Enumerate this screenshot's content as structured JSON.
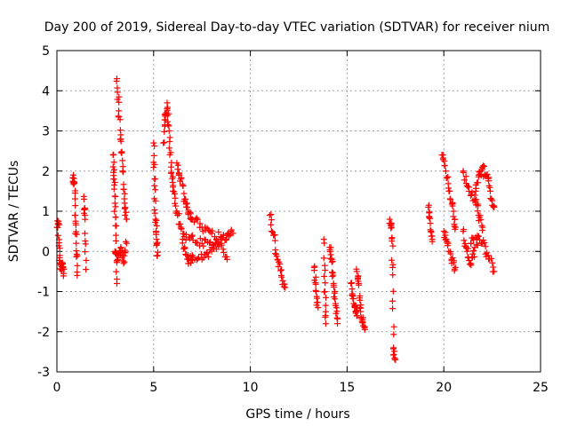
{
  "chart_data": {
    "type": "scatter",
    "title": "Day 200 of 2019, Sidereal Day-to-day VTEC variation (SDTVAR) for receiver nium",
    "xlabel": "GPS time / hours",
    "ylabel": "SDTVAR / TECUs",
    "xlim": [
      0,
      25
    ],
    "ylim": [
      -3,
      5
    ],
    "xticks": [
      0,
      5,
      10,
      15,
      20,
      25
    ],
    "yticks": [
      -3,
      -2,
      -1,
      0,
      1,
      2,
      3,
      4,
      5
    ],
    "grid": true,
    "marker": "+",
    "series_color": "#ff0000",
    "series": [
      {
        "name": "SDTVAR",
        "segments": [
          {
            "x0": 0.0,
            "x1": 0.35,
            "points": [
              [
                0.0,
                0.6
              ],
              [
                0.08,
                0.7
              ],
              [
                0.15,
                -0.1
              ],
              [
                0.22,
                -0.45
              ],
              [
                0.3,
                -0.3
              ],
              [
                0.35,
                -0.55
              ]
            ]
          },
          {
            "x0": 0.85,
            "x1": 1.05,
            "points": [
              [
                0.85,
                1.9
              ],
              [
                0.9,
                1.7
              ],
              [
                0.95,
                0.9
              ],
              [
                1.0,
                0.2
              ],
              [
                1.05,
                -0.6
              ]
            ]
          },
          {
            "x0": 1.4,
            "x1": 1.5,
            "points": [
              [
                1.4,
                1.3
              ],
              [
                1.45,
                0.9
              ],
              [
                1.5,
                -0.45
              ]
            ]
          },
          {
            "x0": 2.9,
            "x1": 3.1,
            "points": [
              [
                2.9,
                2.4
              ],
              [
                2.95,
                1.8
              ],
              [
                3.0,
                1.2
              ],
              [
                3.05,
                0.4
              ],
              [
                3.1,
                -0.8
              ]
            ]
          },
          {
            "x0": 3.1,
            "x1": 3.6,
            "points": [
              [
                3.1,
                4.3
              ],
              [
                3.2,
                3.5
              ],
              [
                3.3,
                2.8
              ],
              [
                3.4,
                2.0
              ],
              [
                3.5,
                1.2
              ],
              [
                3.6,
                0.8
              ]
            ]
          },
          {
            "x0": 3.0,
            "x1": 3.6,
            "points": [
              [
                3.0,
                0.0
              ],
              [
                3.15,
                -0.2
              ],
              [
                3.3,
                0.1
              ],
              [
                3.45,
                -0.3
              ],
              [
                3.6,
                0.2
              ]
            ]
          },
          {
            "x0": 5.0,
            "x1": 5.2,
            "points": [
              [
                5.0,
                2.7
              ],
              [
                5.05,
                1.8
              ],
              [
                5.1,
                0.8
              ],
              [
                5.15,
                0.3
              ],
              [
                5.2,
                -0.1
              ]
            ]
          },
          {
            "x0": 5.5,
            "x1": 6.0,
            "points": [
              [
                5.5,
                2.7
              ],
              [
                5.6,
                3.4
              ],
              [
                5.7,
                3.7
              ],
              [
                5.8,
                3.0
              ],
              [
                5.9,
                2.1
              ],
              [
                6.0,
                1.6
              ]
            ]
          },
          {
            "x0": 6.0,
            "x1": 7.0,
            "points": [
              [
                6.0,
                1.5
              ],
              [
                6.2,
                1.0
              ],
              [
                6.4,
                0.6
              ],
              [
                6.6,
                0.1
              ],
              [
                6.8,
                -0.3
              ],
              [
                7.0,
                -0.1
              ]
            ]
          },
          {
            "x0": 6.2,
            "x1": 7.0,
            "points": [
              [
                6.2,
                2.2
              ],
              [
                6.4,
                1.8
              ],
              [
                6.6,
                1.3
              ],
              [
                6.8,
                1.0
              ],
              [
                7.0,
                0.8
              ]
            ]
          },
          {
            "x0": 7.0,
            "x1": 9.1,
            "points": [
              [
                7.0,
                0.8
              ],
              [
                7.5,
                0.6
              ],
              [
                8.0,
                0.45
              ],
              [
                8.5,
                0.35
              ],
              [
                9.1,
                0.45
              ]
            ]
          },
          {
            "x0": 7.0,
            "x1": 9.0,
            "points": [
              [
                7.0,
                -0.1
              ],
              [
                7.5,
                -0.2
              ],
              [
                8.0,
                0.0
              ],
              [
                8.5,
                0.3
              ],
              [
                9.0,
                0.5
              ]
            ]
          },
          {
            "x0": 6.5,
            "x1": 8.8,
            "points": [
              [
                6.5,
                0.3
              ],
              [
                7.0,
                0.4
              ],
              [
                7.5,
                0.2
              ],
              [
                8.0,
                0.1
              ],
              [
                8.5,
                0.2
              ],
              [
                8.8,
                -0.2
              ]
            ]
          },
          {
            "x0": 11.0,
            "x1": 11.8,
            "points": [
              [
                11.0,
                0.9
              ],
              [
                11.2,
                0.4
              ],
              [
                11.4,
                -0.2
              ],
              [
                11.6,
                -0.6
              ],
              [
                11.8,
                -0.9
              ]
            ]
          },
          {
            "x0": 13.3,
            "x1": 13.5,
            "points": [
              [
                13.3,
                -0.4
              ],
              [
                13.4,
                -1.0
              ],
              [
                13.5,
                -1.4
              ]
            ]
          },
          {
            "x0": 13.8,
            "x1": 13.9,
            "points": [
              [
                13.8,
                0.3
              ],
              [
                13.85,
                -1.0
              ],
              [
                13.9,
                -1.8
              ]
            ]
          },
          {
            "x0": 14.1,
            "x1": 14.5,
            "points": [
              [
                14.1,
                0.1
              ],
              [
                14.2,
                -0.2
              ],
              [
                14.3,
                -0.8
              ],
              [
                14.4,
                -1.3
              ],
              [
                14.5,
                -1.8
              ]
            ]
          },
          {
            "x0": 15.2,
            "x1": 15.5,
            "points": [
              [
                15.2,
                -0.8
              ],
              [
                15.3,
                -1.1
              ],
              [
                15.4,
                -1.4
              ],
              [
                15.5,
                -1.6
              ]
            ]
          },
          {
            "x0": 15.5,
            "x1": 15.9,
            "points": [
              [
                15.5,
                -0.5
              ],
              [
                15.6,
                -0.8
              ],
              [
                15.7,
                -1.5
              ],
              [
                15.8,
                -1.7
              ],
              [
                15.9,
                -1.9
              ]
            ]
          },
          {
            "x0": 17.2,
            "x1": 17.5,
            "points": [
              [
                17.2,
                0.8
              ],
              [
                17.3,
                0.6
              ],
              [
                17.35,
                -0.4
              ],
              [
                17.4,
                -2.4
              ],
              [
                17.5,
                -2.7
              ]
            ]
          },
          {
            "x0": 19.2,
            "x1": 19.4,
            "points": [
              [
                19.2,
                1.1
              ],
              [
                19.3,
                0.7
              ],
              [
                19.4,
                0.3
              ]
            ]
          },
          {
            "x0": 19.9,
            "x1": 20.6,
            "points": [
              [
                19.9,
                2.4
              ],
              [
                20.1,
                2.0
              ],
              [
                20.3,
                1.5
              ],
              [
                20.5,
                1.0
              ],
              [
                20.6,
                0.6
              ]
            ]
          },
          {
            "x0": 20.0,
            "x1": 20.6,
            "points": [
              [
                20.0,
                0.5
              ],
              [
                20.2,
                0.2
              ],
              [
                20.4,
                -0.2
              ],
              [
                20.6,
                -0.4
              ]
            ]
          },
          {
            "x0": 21.0,
            "x1": 22.0,
            "points": [
              [
                21.0,
                2.0
              ],
              [
                21.3,
                1.6
              ],
              [
                21.6,
                1.3
              ],
              [
                21.8,
                0.9
              ],
              [
                22.0,
                0.6
              ]
            ]
          },
          {
            "x0": 21.4,
            "x1": 22.6,
            "points": [
              [
                21.4,
                0.2
              ],
              [
                21.7,
                0.3
              ],
              [
                22.0,
                0.2
              ],
              [
                22.3,
                -0.1
              ],
              [
                22.6,
                -0.5
              ]
            ]
          },
          {
            "x0": 21.6,
            "x1": 22.6,
            "points": [
              [
                21.6,
                1.4
              ],
              [
                21.8,
                1.9
              ],
              [
                22.0,
                2.05
              ],
              [
                22.2,
                1.9
              ],
              [
                22.4,
                1.5
              ],
              [
                22.6,
                1.1
              ]
            ]
          },
          {
            "x0": 21.0,
            "x1": 21.6,
            "points": [
              [
                21.0,
                0.5
              ],
              [
                21.2,
                0.0
              ],
              [
                21.4,
                -0.3
              ],
              [
                21.6,
                0.1
              ]
            ]
          }
        ]
      }
    ]
  }
}
